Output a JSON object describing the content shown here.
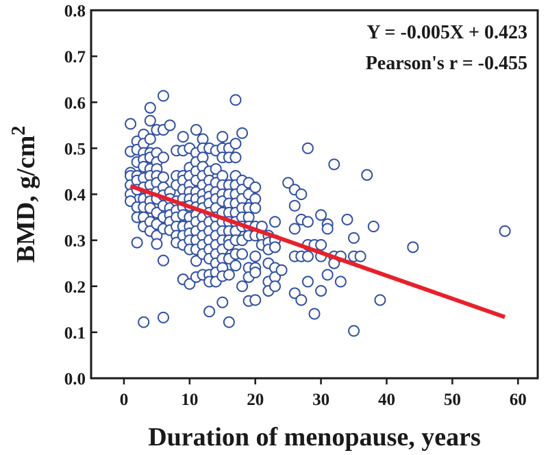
{
  "chart_data": {
    "type": "scatter",
    "title": "",
    "xlabel": "Duration of menopause, years",
    "ylabel": "BMD, g/cm",
    "ylabel_superscript": "2",
    "xlim": [
      -5,
      63
    ],
    "ylim": [
      0.0,
      0.8
    ],
    "xticks": [
      0,
      10,
      20,
      30,
      40,
      50,
      60
    ],
    "yticks": [
      0.0,
      0.1,
      0.2,
      0.3,
      0.4,
      0.5,
      0.6,
      0.7,
      0.8
    ],
    "xtick_labels": [
      "0",
      "10",
      "20",
      "30",
      "40",
      "50",
      "60"
    ],
    "ytick_labels": [
      "0.0",
      "0.1",
      "0.2",
      "0.3",
      "0.4",
      "0.5",
      "0.6",
      "0.7",
      "0.8"
    ],
    "grid": false,
    "annotations": [
      "Y = -0.005X + 0.423",
      "Pearson's r = -0.455"
    ],
    "colors": {
      "points": "#2f4fa8",
      "fit_line": "#e8202a",
      "axes": "#1a1a1a"
    },
    "fit_line": {
      "slope": -0.005,
      "intercept": 0.423,
      "x_range": [
        1,
        58
      ]
    },
    "points": [
      [
        1,
        0.553
      ],
      [
        1,
        0.493
      ],
      [
        1,
        0.447
      ],
      [
        1,
        0.44
      ],
      [
        1,
        0.42
      ],
      [
        1,
        0.4
      ],
      [
        1,
        0.385
      ],
      [
        2,
        0.515
      ],
      [
        2,
        0.497
      ],
      [
        2,
        0.47
      ],
      [
        2,
        0.44
      ],
      [
        2,
        0.43
      ],
      [
        2,
        0.41
      ],
      [
        2,
        0.372
      ],
      [
        2,
        0.35
      ],
      [
        2,
        0.295
      ],
      [
        3,
        0.53
      ],
      [
        3,
        0.51
      ],
      [
        3,
        0.49
      ],
      [
        3,
        0.475
      ],
      [
        3,
        0.46
      ],
      [
        3,
        0.435
      ],
      [
        3,
        0.415
      ],
      [
        3,
        0.39
      ],
      [
        3,
        0.372
      ],
      [
        3,
        0.35
      ],
      [
        3,
        0.33
      ],
      [
        3,
        0.122
      ],
      [
        4,
        0.588
      ],
      [
        4,
        0.56
      ],
      [
        4,
        0.52
      ],
      [
        4,
        0.49
      ],
      [
        4,
        0.48
      ],
      [
        4,
        0.455
      ],
      [
        4,
        0.44
      ],
      [
        4,
        0.42
      ],
      [
        4,
        0.4
      ],
      [
        4,
        0.385
      ],
      [
        4,
        0.37
      ],
      [
        4,
        0.34
      ],
      [
        4,
        0.32
      ],
      [
        5,
        0.54
      ],
      [
        5,
        0.49
      ],
      [
        5,
        0.47
      ],
      [
        5,
        0.455
      ],
      [
        5,
        0.44
      ],
      [
        5,
        0.425
      ],
      [
        5,
        0.405
      ],
      [
        5,
        0.39
      ],
      [
        5,
        0.36
      ],
      [
        5,
        0.335
      ],
      [
        5,
        0.31
      ],
      [
        5,
        0.292
      ],
      [
        6,
        0.614
      ],
      [
        6,
        0.54
      ],
      [
        6,
        0.48
      ],
      [
        6,
        0.437
      ],
      [
        6,
        0.415
      ],
      [
        6,
        0.398
      ],
      [
        6,
        0.375
      ],
      [
        6,
        0.35
      ],
      [
        6,
        0.325
      ],
      [
        6,
        0.256
      ],
      [
        6,
        0.132
      ],
      [
        7,
        0.55
      ],
      [
        7,
        0.405
      ],
      [
        7,
        0.39
      ],
      [
        7,
        0.37
      ],
      [
        7,
        0.355
      ],
      [
        7,
        0.34
      ],
      [
        7,
        0.322
      ],
      [
        8,
        0.495
      ],
      [
        8,
        0.44
      ],
      [
        8,
        0.42
      ],
      [
        8,
        0.385
      ],
      [
        8,
        0.365
      ],
      [
        8,
        0.35
      ],
      [
        8,
        0.33
      ],
      [
        8,
        0.31
      ],
      [
        8,
        0.295
      ],
      [
        9,
        0.525
      ],
      [
        9,
        0.495
      ],
      [
        9,
        0.44
      ],
      [
        9,
        0.43
      ],
      [
        9,
        0.41
      ],
      [
        9,
        0.39
      ],
      [
        9,
        0.372
      ],
      [
        9,
        0.355
      ],
      [
        9,
        0.33
      ],
      [
        9,
        0.31
      ],
      [
        9,
        0.29
      ],
      [
        9,
        0.215
      ],
      [
        10,
        0.5
      ],
      [
        10,
        0.458
      ],
      [
        10,
        0.44
      ],
      [
        10,
        0.42
      ],
      [
        10,
        0.405
      ],
      [
        10,
        0.39
      ],
      [
        10,
        0.375
      ],
      [
        10,
        0.35
      ],
      [
        10,
        0.33
      ],
      [
        10,
        0.315
      ],
      [
        10,
        0.3
      ],
      [
        10,
        0.28
      ],
      [
        10,
        0.205
      ],
      [
        11,
        0.54
      ],
      [
        11,
        0.49
      ],
      [
        11,
        0.47
      ],
      [
        11,
        0.45
      ],
      [
        11,
        0.43
      ],
      [
        11,
        0.405
      ],
      [
        11,
        0.39
      ],
      [
        11,
        0.372
      ],
      [
        11,
        0.355
      ],
      [
        11,
        0.34
      ],
      [
        11,
        0.32
      ],
      [
        11,
        0.3
      ],
      [
        11,
        0.28
      ],
      [
        11,
        0.255
      ],
      [
        11,
        0.22
      ],
      [
        12,
        0.52
      ],
      [
        12,
        0.5
      ],
      [
        12,
        0.48
      ],
      [
        12,
        0.46
      ],
      [
        12,
        0.44
      ],
      [
        12,
        0.42
      ],
      [
        12,
        0.4
      ],
      [
        12,
        0.385
      ],
      [
        12,
        0.37
      ],
      [
        12,
        0.35
      ],
      [
        12,
        0.33
      ],
      [
        12,
        0.31
      ],
      [
        12,
        0.29
      ],
      [
        12,
        0.27
      ],
      [
        12,
        0.225
      ],
      [
        13,
        0.5
      ],
      [
        13,
        0.45
      ],
      [
        13,
        0.43
      ],
      [
        13,
        0.41
      ],
      [
        13,
        0.395
      ],
      [
        13,
        0.38
      ],
      [
        13,
        0.36
      ],
      [
        13,
        0.34
      ],
      [
        13,
        0.32
      ],
      [
        13,
        0.3
      ],
      [
        13,
        0.28
      ],
      [
        13,
        0.26
      ],
      [
        13,
        0.225
      ],
      [
        13,
        0.21
      ],
      [
        13,
        0.145
      ],
      [
        14,
        0.495
      ],
      [
        14,
        0.455
      ],
      [
        14,
        0.425
      ],
      [
        14,
        0.405
      ],
      [
        14,
        0.39
      ],
      [
        14,
        0.37
      ],
      [
        14,
        0.35
      ],
      [
        14,
        0.33
      ],
      [
        14,
        0.31
      ],
      [
        14,
        0.29
      ],
      [
        14,
        0.27
      ],
      [
        14,
        0.25
      ],
      [
        14,
        0.23
      ],
      [
        14,
        0.21
      ],
      [
        15,
        0.525
      ],
      [
        15,
        0.5
      ],
      [
        15,
        0.48
      ],
      [
        15,
        0.44
      ],
      [
        15,
        0.42
      ],
      [
        15,
        0.4
      ],
      [
        15,
        0.385
      ],
      [
        15,
        0.36
      ],
      [
        15,
        0.34
      ],
      [
        15,
        0.32
      ],
      [
        15,
        0.3
      ],
      [
        15,
        0.28
      ],
      [
        15,
        0.26
      ],
      [
        15,
        0.24
      ],
      [
        15,
        0.222
      ],
      [
        15,
        0.165
      ],
      [
        16,
        0.5
      ],
      [
        16,
        0.48
      ],
      [
        16,
        0.42
      ],
      [
        16,
        0.4
      ],
      [
        16,
        0.38
      ],
      [
        16,
        0.36
      ],
      [
        16,
        0.34
      ],
      [
        16,
        0.32
      ],
      [
        16,
        0.3
      ],
      [
        16,
        0.29
      ],
      [
        16,
        0.26
      ],
      [
        16,
        0.225
      ],
      [
        16,
        0.122
      ],
      [
        17,
        0.605
      ],
      [
        17,
        0.51
      ],
      [
        17,
        0.48
      ],
      [
        17,
        0.44
      ],
      [
        17,
        0.42
      ],
      [
        17,
        0.4
      ],
      [
        17,
        0.38
      ],
      [
        17,
        0.36
      ],
      [
        17,
        0.34
      ],
      [
        17,
        0.32
      ],
      [
        17,
        0.3
      ],
      [
        17,
        0.27
      ],
      [
        17,
        0.245
      ],
      [
        18,
        0.533
      ],
      [
        18,
        0.43
      ],
      [
        18,
        0.41
      ],
      [
        18,
        0.39
      ],
      [
        18,
        0.37
      ],
      [
        18,
        0.35
      ],
      [
        18,
        0.33
      ],
      [
        18,
        0.3
      ],
      [
        18,
        0.27
      ],
      [
        18,
        0.2
      ],
      [
        19,
        0.425
      ],
      [
        19,
        0.4
      ],
      [
        19,
        0.37
      ],
      [
        19,
        0.35
      ],
      [
        19,
        0.33
      ],
      [
        19,
        0.31
      ],
      [
        19,
        0.24
      ],
      [
        19,
        0.22
      ],
      [
        19,
        0.168
      ],
      [
        20,
        0.415
      ],
      [
        20,
        0.39
      ],
      [
        20,
        0.37
      ],
      [
        20,
        0.33
      ],
      [
        20,
        0.31
      ],
      [
        20,
        0.265
      ],
      [
        20,
        0.24
      ],
      [
        20,
        0.23
      ],
      [
        20,
        0.17
      ],
      [
        21,
        0.33
      ],
      [
        21,
        0.31
      ],
      [
        21,
        0.29
      ],
      [
        22,
        0.31
      ],
      [
        22,
        0.295
      ],
      [
        22,
        0.28
      ],
      [
        22,
        0.25
      ],
      [
        22,
        0.21
      ],
      [
        22,
        0.19
      ],
      [
        23,
        0.34
      ],
      [
        23,
        0.3
      ],
      [
        23,
        0.285
      ],
      [
        23,
        0.24
      ],
      [
        23,
        0.22
      ],
      [
        23,
        0.2
      ],
      [
        24,
        0.235
      ],
      [
        25,
        0.425
      ],
      [
        26,
        0.41
      ],
      [
        26,
        0.375
      ],
      [
        26,
        0.325
      ],
      [
        26,
        0.265
      ],
      [
        26,
        0.185
      ],
      [
        27,
        0.4
      ],
      [
        27,
        0.345
      ],
      [
        27,
        0.265
      ],
      [
        27,
        0.17
      ],
      [
        28,
        0.5
      ],
      [
        28,
        0.34
      ],
      [
        28,
        0.29
      ],
      [
        28,
        0.265
      ],
      [
        28,
        0.21
      ],
      [
        29,
        0.29
      ],
      [
        29,
        0.14
      ],
      [
        30,
        0.355
      ],
      [
        30,
        0.29
      ],
      [
        30,
        0.265
      ],
      [
        30,
        0.19
      ],
      [
        31,
        0.335
      ],
      [
        31,
        0.325
      ],
      [
        31,
        0.225
      ],
      [
        32,
        0.465
      ],
      [
        32,
        0.265
      ],
      [
        32,
        0.25
      ],
      [
        33,
        0.265
      ],
      [
        33,
        0.21
      ],
      [
        34,
        0.345
      ],
      [
        35,
        0.305
      ],
      [
        35,
        0.265
      ],
      [
        35,
        0.103
      ],
      [
        36,
        0.265
      ],
      [
        37,
        0.442
      ],
      [
        38,
        0.33
      ],
      [
        39,
        0.17
      ],
      [
        44,
        0.285
      ],
      [
        58,
        0.32
      ]
    ]
  }
}
